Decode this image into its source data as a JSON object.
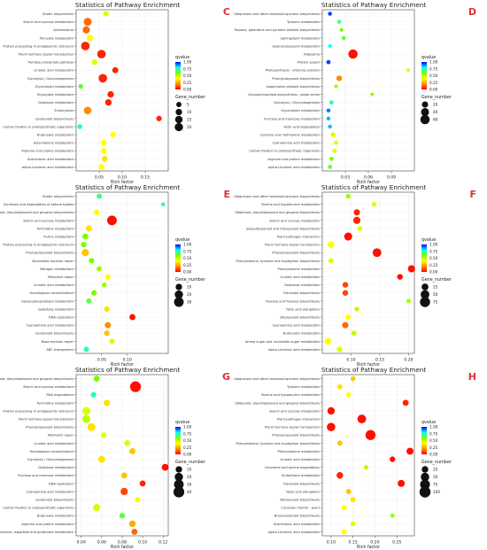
{
  "colorbar_colors": [
    "#0000ff",
    "#00ffff",
    "#7cfc00",
    "#ffff00",
    "#ff8c00",
    "#ff0000"
  ],
  "chart_data": [
    {
      "type": "scatter",
      "panel_label": "C",
      "title": "Statistics of Pathway Enrichment",
      "xlabel": "Rich factor",
      "xlim": [
        0,
        0.2
      ],
      "xticks": [
        0.05,
        0.1,
        0.15
      ],
      "qlabel": "qvalue",
      "qlim": [
        0,
        1
      ],
      "qticks": [
        "0.00",
        "0.25",
        "0.50",
        "0.75",
        "1.00"
      ],
      "glabel": "Gene_number",
      "gmax": 50,
      "gticks": [
        5,
        10,
        15,
        20
      ],
      "categories": [
        "Zeatin biosynthesis",
        "Starch and sucrose metabolism",
        "Spliceosome",
        "Pyruvate metabolism",
        "Protein processing in endoplasmic reticulum",
        "Plant hormone signal transduction",
        "Pentose phosphate pathway",
        "Linoleic acid metabolism",
        "Glycolysis / Gluconeogenesis",
        "Glycerolipid metabolism",
        "Glyoxylate metabolism",
        "Galactose metabolism",
        "Endocytosis",
        "Carotenoid biosynthesis",
        "Carbon fixation in photosynthetic organisms",
        "Butanoate metabolism",
        "beta-Alanine metabolism",
        "Arginine and proline metabolism",
        "Arachidonic acid metabolism",
        "alpha-Linolenic acid metabolism"
      ],
      "points": [
        {
          "x": 0.065,
          "q": 0.45,
          "n": 6
        },
        {
          "x": 0.025,
          "q": 0.15,
          "n": 18
        },
        {
          "x": 0.022,
          "q": 0.15,
          "n": 14
        },
        {
          "x": 0.03,
          "q": 0.4,
          "n": 10
        },
        {
          "x": 0.02,
          "q": 0.05,
          "n": 22
        },
        {
          "x": 0.055,
          "q": 0.05,
          "n": 22
        },
        {
          "x": 0.04,
          "q": 0.45,
          "n": 7
        },
        {
          "x": 0.085,
          "q": 0.05,
          "n": 8
        },
        {
          "x": 0.058,
          "q": 0.05,
          "n": 22
        },
        {
          "x": 0.01,
          "q": 0.65,
          "n": 4
        },
        {
          "x": 0.075,
          "q": 0.05,
          "n": 10
        },
        {
          "x": 0.07,
          "q": 0.05,
          "n": 10
        },
        {
          "x": 0.025,
          "q": 0.2,
          "n": 16
        },
        {
          "x": 0.18,
          "q": 0.05,
          "n": 6
        },
        {
          "x": 0.008,
          "q": 0.75,
          "n": 4
        },
        {
          "x": 0.08,
          "q": 0.4,
          "n": 6
        },
        {
          "x": 0.06,
          "q": 0.4,
          "n": 7
        },
        {
          "x": 0.06,
          "q": 0.4,
          "n": 7
        },
        {
          "x": 0.062,
          "q": 0.35,
          "n": 7
        },
        {
          "x": 0.055,
          "q": 0.4,
          "n": 7
        }
      ]
    },
    {
      "type": "scatter",
      "panel_label": "D",
      "title": "Statistics of Pathway Enrichment",
      "xlabel": "Rich factor",
      "xlim": [
        0,
        0.12
      ],
      "xticks": [
        0.03,
        0.06,
        0.09
      ],
      "qlabel": "qvalue",
      "qlim": [
        0,
        1
      ],
      "qticks": [
        "0.00",
        "0.25",
        "0.50",
        "0.75",
        "1.00"
      ],
      "glabel": "Gene_number",
      "gmax": 110,
      "gticks": [
        20,
        40,
        60
      ],
      "categories": [
        "Ubiquinone and other terpenoid-quinone biosynthesis",
        "Tyrosine metabolism",
        "Tropane, piperidine and pyridine alkaloid biosynthesis",
        "Sphingolipid metabolism",
        "Selenocompound metabolism",
        "Ribosome",
        "Protein export",
        "Photosynthesis - antenna proteins",
        "Phenylpropanoid biosynthesis",
        "Isoquinoline alkaloid biosynthesis",
        "Glycosphingolipid biosynthesis - globo series",
        "Glycolysis / Gluconeogenesis",
        "Glycerolipid metabolism",
        "Fructose and mannose metabolism",
        "Fatty acid degradation",
        "Cysteine and methionine metabolism",
        "Cyanoamino acid metabolism",
        "Carbon fixation in photosynthetic organisms",
        "Arginine and proline metabolism",
        "alpha-Linolenic acid metabolism"
      ],
      "points": [
        {
          "x": 0.01,
          "q": 0.95,
          "n": 4
        },
        {
          "x": 0.022,
          "q": 0.7,
          "n": 4
        },
        {
          "x": 0.025,
          "q": 0.6,
          "n": 3
        },
        {
          "x": 0.028,
          "q": 0.65,
          "n": 4
        },
        {
          "x": 0.01,
          "q": 0.8,
          "n": 3
        },
        {
          "x": 0.04,
          "q": 0.02,
          "n": 60
        },
        {
          "x": 0.008,
          "q": 0.95,
          "n": 5
        },
        {
          "x": 0.112,
          "q": 0.45,
          "n": 3
        },
        {
          "x": 0.022,
          "q": 0.2,
          "n": 14
        },
        {
          "x": 0.018,
          "q": 0.55,
          "n": 3
        },
        {
          "x": 0.065,
          "q": 0.55,
          "n": 3
        },
        {
          "x": 0.012,
          "q": 0.75,
          "n": 5
        },
        {
          "x": 0.008,
          "q": 0.9,
          "n": 4
        },
        {
          "x": 0.008,
          "q": 0.85,
          "n": 4
        },
        {
          "x": 0.01,
          "q": 0.85,
          "n": 4
        },
        {
          "x": 0.014,
          "q": 0.45,
          "n": 9
        },
        {
          "x": 0.018,
          "q": 0.45,
          "n": 6
        },
        {
          "x": 0.016,
          "q": 0.45,
          "n": 6
        },
        {
          "x": 0.012,
          "q": 0.6,
          "n": 5
        },
        {
          "x": 0.01,
          "q": 0.65,
          "n": 5
        }
      ]
    },
    {
      "type": "scatter",
      "panel_label": "E",
      "title": "Statistics of Pathway Enrichment",
      "xlabel": "Rich factor",
      "xlim": [
        0,
        0.18
      ],
      "xticks": [
        0.05,
        0.1
      ],
      "qlabel": "qvalue",
      "qlim": [
        0,
        1
      ],
      "qticks": [
        "0.00",
        "0.25",
        "0.50",
        "0.75",
        "1.00"
      ],
      "glabel": "Gene_number",
      "gmax": 50,
      "gticks": [
        10,
        20,
        30
      ],
      "categories": [
        "Zeatin biosynthesis",
        "Synthesis and degradation of ketone bodies",
        "Stilbenoid, diarylheptanoid and gingerol biosynthesis",
        "Starch and sucrose metabolism",
        "Pyrimidine metabolism",
        "Purine metabolism",
        "Protein processing in endoplasmic reticulum",
        "Phenylpropanoid biosynthesis",
        "Nucleotide excision repair",
        "Nitrogen metabolism",
        "Mismatch repair",
        "Linoleic acid metabolism",
        "Homologous recombination",
        "Glycerophospholipid metabolism",
        "Galactose metabolism",
        "DNA replication",
        "Cyanoamino acid metabolism",
        "Carotenoid biosynthesis",
        "Base excision repair",
        "ABC transporters"
      ],
      "points": [
        {
          "x": 0.045,
          "q": 0.7,
          "n": 5
        },
        {
          "x": 0.17,
          "q": 0.75,
          "n": 2
        },
        {
          "x": 0.04,
          "q": 0.4,
          "n": 6
        },
        {
          "x": 0.07,
          "q": 0.02,
          "n": 30
        },
        {
          "x": 0.025,
          "q": 0.35,
          "n": 9
        },
        {
          "x": 0.018,
          "q": 0.6,
          "n": 7
        },
        {
          "x": 0.015,
          "q": 0.6,
          "n": 6
        },
        {
          "x": 0.018,
          "q": 0.3,
          "n": 14
        },
        {
          "x": 0.03,
          "q": 0.6,
          "n": 6
        },
        {
          "x": 0.045,
          "q": 0.55,
          "n": 5
        },
        {
          "x": 0.062,
          "q": 0.4,
          "n": 6
        },
        {
          "x": 0.055,
          "q": 0.55,
          "n": 4
        },
        {
          "x": 0.035,
          "q": 0.6,
          "n": 6
        },
        {
          "x": 0.025,
          "q": 0.65,
          "n": 5
        },
        {
          "x": 0.06,
          "q": 0.35,
          "n": 6
        },
        {
          "x": 0.11,
          "q": 0.02,
          "n": 8
        },
        {
          "x": 0.062,
          "q": 0.2,
          "n": 9
        },
        {
          "x": 0.06,
          "q": 0.3,
          "n": 6
        },
        {
          "x": 0.07,
          "q": 0.45,
          "n": 5
        },
        {
          "x": 0.02,
          "q": 0.75,
          "n": 5
        }
      ]
    },
    {
      "type": "scatter",
      "panel_label": "F",
      "title": "Statistics of Pathway Enrichment",
      "xlabel": "Rich factor",
      "xlim": [
        0.05,
        0.21
      ],
      "xticks": [
        0.1,
        0.15,
        0.2
      ],
      "qlabel": "qvalue",
      "qlim": [
        0,
        1
      ],
      "qticks": [
        "0.00",
        "0.25",
        "0.50",
        "0.75",
        "1.00"
      ],
      "glabel": "Gene_number",
      "gmax": 110,
      "gticks": [
        25,
        50,
        75
      ],
      "categories": [
        "Ubiquinone and other terpenoid-quinone biosynthesis",
        "Taurine and hypotaurine metabolism",
        "Stilbenoid, diarylheptanoid and gingerol biosynthesis",
        "Starch and sucrose metabolism",
        "Sesquiterpenoid and triterpenoid biosynthesis",
        "Plant-pathogen interaction",
        "Plant hormone signal transduction",
        "Phenylpropanoid biosynthesis",
        "Phenylalanine, tyrosine and tryptophan biosynthesis",
        "Phenylalanine metabolism",
        "Linoleic acid metabolism",
        "Galactose metabolism",
        "Flavonoid biosynthesis",
        "Flavone and flavonol biosynthesis",
        "Fatty acid elongation",
        "Diterpenoid biosynthesis",
        "Cyanoamino acid metabolism",
        "Butanoate metabolism",
        "Amino sugar and nucleotide sugar metabolism",
        "alpha-Linolenic acid metabolism"
      ],
      "points": [
        {
          "x": 0.095,
          "q": 0.55,
          "n": 8
        },
        {
          "x": 0.14,
          "q": 0.45,
          "n": 8
        },
        {
          "x": 0.11,
          "q": 0.05,
          "n": 20
        },
        {
          "x": 0.11,
          "q": 0.05,
          "n": 30
        },
        {
          "x": 0.115,
          "q": 0.45,
          "n": 10
        },
        {
          "x": 0.095,
          "q": 0.02,
          "n": 40
        },
        {
          "x": 0.065,
          "q": 0.4,
          "n": 25
        },
        {
          "x": 0.145,
          "q": 0.02,
          "n": 50
        },
        {
          "x": 0.065,
          "q": 0.45,
          "n": 10
        },
        {
          "x": 0.205,
          "q": 0.02,
          "n": 30
        },
        {
          "x": 0.185,
          "q": 0.02,
          "n": 15
        },
        {
          "x": 0.09,
          "q": 0.1,
          "n": 15
        },
        {
          "x": 0.09,
          "q": 0.1,
          "n": 15
        },
        {
          "x": 0.2,
          "q": 0.55,
          "n": 6
        },
        {
          "x": 0.11,
          "q": 0.5,
          "n": 8
        },
        {
          "x": 0.095,
          "q": 0.4,
          "n": 10
        },
        {
          "x": 0.09,
          "q": 0.15,
          "n": 20
        },
        {
          "x": 0.105,
          "q": 0.5,
          "n": 10
        },
        {
          "x": 0.06,
          "q": 0.4,
          "n": 25
        },
        {
          "x": 0.08,
          "q": 0.45,
          "n": 15
        }
      ]
    },
    {
      "type": "scatter",
      "panel_label": "G",
      "title": "Statistics of Pathway Enrichment",
      "xlabel": "Rich factor",
      "xlim": [
        0.035,
        0.125
      ],
      "xticks": [
        0.04,
        0.06,
        0.08,
        0.1,
        0.12
      ],
      "qlabel": "qvalue",
      "qlim": [
        0,
        1
      ],
      "qticks": [
        "0.00",
        "0.25",
        "0.50",
        "0.75",
        "1.00"
      ],
      "glabel": "Gene_number",
      "gmax": 50,
      "gticks": [
        10,
        20,
        30,
        40
      ],
      "categories": [
        "Stilbenoid, diarylheptanoid and gingerol biosynthesis",
        "Starch and sucrose metabolism",
        "RNA degradation",
        "Pyrimidine metabolism",
        "Protein processing in endoplasmic reticulum",
        "Plant hormone signal transduction",
        "Phenylpropanoid biosynthesis",
        "Mismatch repair",
        "Linoleic acid metabolism",
        "Homologous recombination",
        "Glycolysis / Gluconeogenesis",
        "Galactose metabolism",
        "Fructose and mannose metabolism",
        "DNA replication",
        "Cyanoamino acid metabolism",
        "Carotenoid biosynthesis",
        "Carbon fixation in photosynthetic organisms",
        "Butanoate metabolism",
        "Arginine and proline metabolism",
        "Alanine, aspartate and glutamate metabolism"
      ],
      "points": [
        {
          "x": 0.055,
          "q": 0.6,
          "n": 8
        },
        {
          "x": 0.093,
          "q": 0.02,
          "n": 40
        },
        {
          "x": 0.052,
          "q": 0.75,
          "n": 6
        },
        {
          "x": 0.065,
          "q": 0.35,
          "n": 10
        },
        {
          "x": 0.045,
          "q": 0.45,
          "n": 18
        },
        {
          "x": 0.045,
          "q": 0.5,
          "n": 18
        },
        {
          "x": 0.05,
          "q": 0.35,
          "n": 18
        },
        {
          "x": 0.062,
          "q": 0.45,
          "n": 6
        },
        {
          "x": 0.085,
          "q": 0.45,
          "n": 8
        },
        {
          "x": 0.09,
          "q": 0.3,
          "n": 8
        },
        {
          "x": 0.06,
          "q": 0.35,
          "n": 12
        },
        {
          "x": 0.122,
          "q": 0.02,
          "n": 12
        },
        {
          "x": 0.082,
          "q": 0.3,
          "n": 8
        },
        {
          "x": 0.1,
          "q": 0.05,
          "n": 8
        },
        {
          "x": 0.082,
          "q": 0.1,
          "n": 14
        },
        {
          "x": 0.095,
          "q": 0.4,
          "n": 6
        },
        {
          "x": 0.055,
          "q": 0.45,
          "n": 14
        },
        {
          "x": 0.08,
          "q": 0.65,
          "n": 6
        },
        {
          "x": 0.09,
          "q": 0.25,
          "n": 10
        },
        {
          "x": 0.092,
          "q": 0.15,
          "n": 8
        }
      ]
    },
    {
      "type": "scatter",
      "panel_label": "H",
      "title": "Statistics of Pathway Enrichment",
      "xlabel": "Rich factor",
      "xlim": [
        0.08,
        0.29
      ],
      "xticks": [
        0.1,
        0.15,
        0.2,
        0.25
      ],
      "qlabel": "qvalue",
      "qlim": [
        0,
        1
      ],
      "qticks": [
        "0.00",
        "0.25",
        "0.50",
        "0.75",
        "1.00"
      ],
      "glabel": "Gene_number",
      "gmax": 120,
      "gticks": [
        25,
        50,
        75,
        100
      ],
      "categories": [
        "Ubiquinone and other terpenoid-quinone biosynthesis",
        "Tyrosine metabolism",
        "Taurine and hypotaurine metabolism",
        "Stilbenoid, diarylheptanoid and gingerol biosynthesis",
        "Starch and sucrose metabolism",
        "Plant-pathogen interaction",
        "Plant hormone signal transduction",
        "Phenylpropanoid biosynthesis",
        "Phenylalanine, tyrosine and tryptophan biosynthesis",
        "Phenylalanine metabolism",
        "Linoleic acid metabolism",
        "Limonene and pinene degradation",
        "Glutathione metabolism",
        "Flavonoid biosynthesis",
        "Fatty acid elongation",
        "Diterpenoid biosynthesis",
        "Circadian rhythm - plant",
        "Brassinosteroid biosynthesis",
        "Arachidonic acid metabolism",
        "alpha-Linolenic acid metabolism"
      ],
      "points": [
        {
          "x": 0.15,
          "q": 0.3,
          "n": 10
        },
        {
          "x": 0.12,
          "q": 0.35,
          "n": 12
        },
        {
          "x": 0.14,
          "q": 0.4,
          "n": 8
        },
        {
          "x": 0.27,
          "q": 0.05,
          "n": 20
        },
        {
          "x": 0.1,
          "q": 0.02,
          "n": 35
        },
        {
          "x": 0.17,
          "q": 0.02,
          "n": 55
        },
        {
          "x": 0.1,
          "q": 0.02,
          "n": 50
        },
        {
          "x": 0.19,
          "q": 0.02,
          "n": 80
        },
        {
          "x": 0.12,
          "q": 0.3,
          "n": 12
        },
        {
          "x": 0.28,
          "q": 0.02,
          "n": 30
        },
        {
          "x": 0.24,
          "q": 0.02,
          "n": 15
        },
        {
          "x": 0.18,
          "q": 0.5,
          "n": 8
        },
        {
          "x": 0.12,
          "q": 0.05,
          "n": 25
        },
        {
          "x": 0.26,
          "q": 0.02,
          "n": 30
        },
        {
          "x": 0.14,
          "q": 0.3,
          "n": 12
        },
        {
          "x": 0.15,
          "q": 0.35,
          "n": 12
        },
        {
          "x": 0.13,
          "q": 0.4,
          "n": 12
        },
        {
          "x": 0.24,
          "q": 0.55,
          "n": 6
        },
        {
          "x": 0.15,
          "q": 0.45,
          "n": 10
        },
        {
          "x": 0.13,
          "q": 0.4,
          "n": 12
        }
      ]
    }
  ]
}
